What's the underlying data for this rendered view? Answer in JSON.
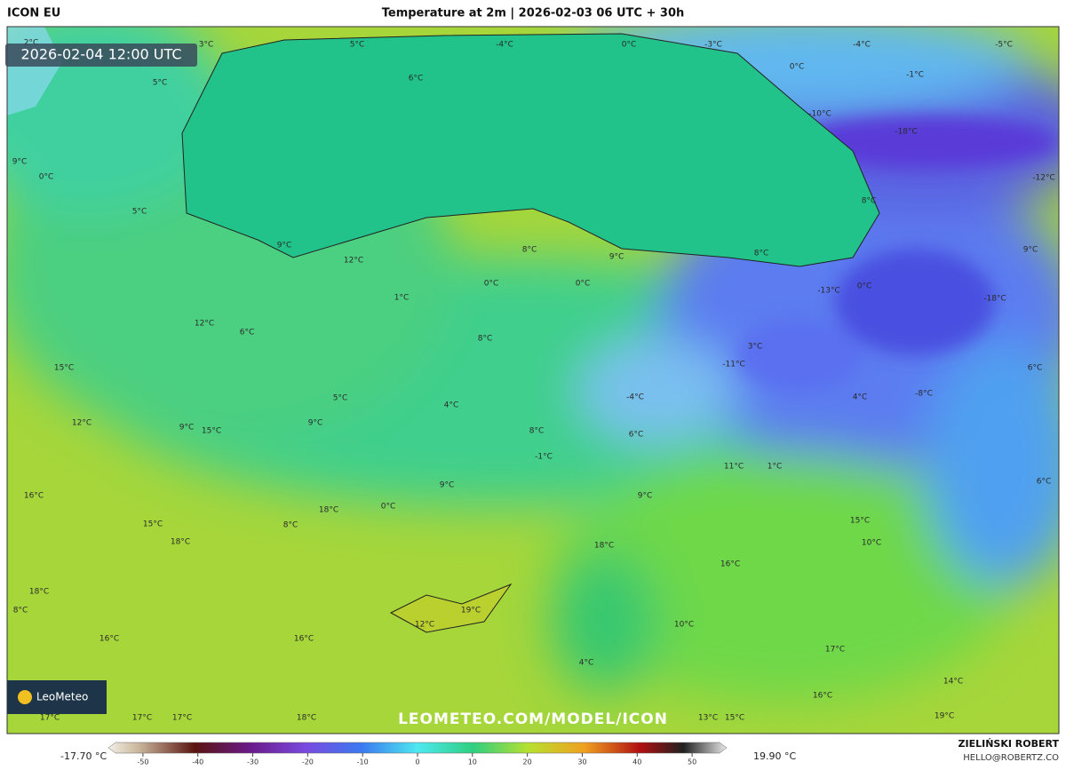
{
  "header": {
    "model": "ICON EU",
    "title": "Temperature at 2m | 2026-02-03 06 UTC + 30h"
  },
  "timestamp": "2026-02-04 12:00 UTC",
  "map": {
    "labels": [
      "2°C",
      "3°C",
      "5°C",
      "-4°C",
      "0°C",
      "-3°C",
      "-4°C",
      "-5°C",
      "0°C",
      "-1°C",
      "5°C",
      "6°C",
      "-10°C",
      "-18°C",
      "9°C",
      "0°C",
      "-12°C",
      "5°C",
      "8°C",
      "9°C",
      "12°C",
      "8°C",
      "9°C",
      "8°C",
      "9°C",
      "0°C",
      "0°C",
      "-13°C",
      "0°C",
      "-18°C",
      "1°C",
      "12°C",
      "6°C",
      "8°C",
      "3°C",
      "15°C",
      "-11°C",
      "6°C",
      "5°C",
      "-4°C",
      "4°C",
      "-8°C",
      "4°C",
      "9°C",
      "12°C",
      "9°C",
      "15°C",
      "8°C",
      "6°C",
      "-1°C",
      "11°C",
      "1°C",
      "6°C",
      "9°C",
      "9°C",
      "16°C",
      "0°C",
      "18°C",
      "15°C",
      "15°C",
      "8°C",
      "18°C",
      "18°C",
      "10°C",
      "16°C",
      "18°C",
      "19°C",
      "8°C",
      "12°C",
      "10°C",
      "16°C",
      "16°C",
      "17°C",
      "4°C",
      "14°C",
      "16°C",
      "17°C",
      "17°C",
      "17°C",
      "18°C",
      "13°C",
      "15°C",
      "19°C"
    ]
  },
  "watermark": "LEOMETEO.COM/MODEL/ICON",
  "logo": "LeoMeteo",
  "legend": {
    "min_label": "-17.70 °C",
    "max_label": "19.90 °C",
    "range": [
      -55,
      55
    ],
    "ticks": [
      -50,
      -40,
      -30,
      -20,
      -10,
      0,
      10,
      20,
      30,
      40,
      50
    ]
  },
  "credit": {
    "name": "ZIELIŃSKI ROBERT",
    "email": "HELLO@ROBERTZ.CO"
  }
}
